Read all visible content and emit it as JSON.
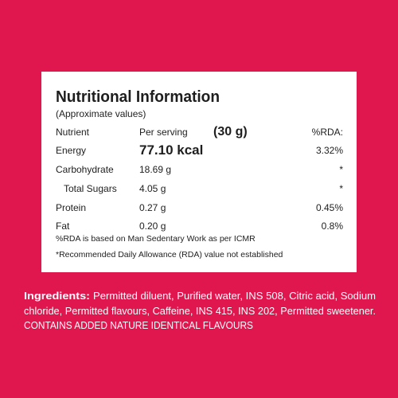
{
  "label": {
    "title": "Nutritional Information",
    "subtitle": "(Approximate values)",
    "header": [
      "Nutrient",
      "Per serving",
      "(30 g)",
      "%RDA:"
    ],
    "rows": [
      [
        "Energy",
        "77.10 kcal",
        "3.32%"
      ],
      [
        "Carbohydrate",
        "18.69 g",
        "*"
      ],
      [
        "Total Sugars",
        "4.05 g",
        "*"
      ],
      [
        "Protein",
        "0.27 g",
        "0.45%"
      ],
      [
        "Fat",
        "0.20 g",
        "0.8%"
      ]
    ],
    "footnotes": [
      "%RDA is based on Man Sedentary Work as per ICMR",
      "*Recommended Daily Allowance (RDA) value not established"
    ]
  },
  "ingredients": {
    "label": "Ingredients:",
    "lines": [
      "Permitted diluent, Purified water, INS 508, Citric acid, Sodium",
      "chloride, Permitted flavours, Caffeine, INS 415, INS 202, Permitted sweetener."
    ],
    "contains": "CONTAINS ADDED NATURE IDENTICAL FLAVOURS"
  }
}
